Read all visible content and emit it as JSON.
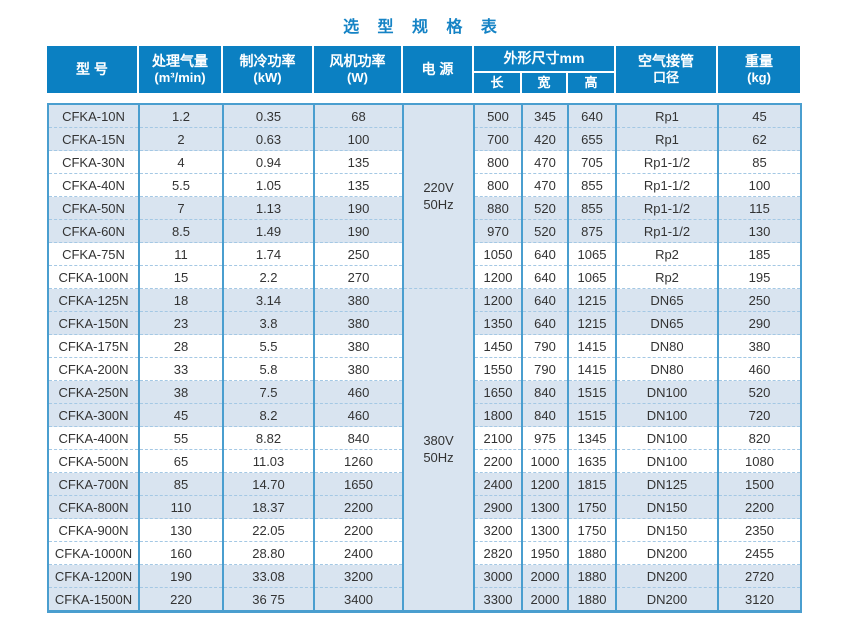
{
  "title": "选 型 规 格 表",
  "colors": {
    "header_bg": "#0b80c2",
    "title_text": "#1583c5",
    "stripe_bg": "#d9e4f0",
    "grid_border": "#4a9ecf",
    "dashed_divider": "#a4c8e4",
    "body_text": "#333333",
    "header_text": "#ffffff"
  },
  "table": {
    "headers": {
      "model": "型 号",
      "airflow_line1": "处理气量",
      "airflow_line2": "(m³/min)",
      "cooling_line1": "制冷功率",
      "cooling_line2": "(kW)",
      "fan_line1": "风机功率",
      "fan_line2": "(W)",
      "power": "电 源",
      "dimensions": "外形尺寸mm",
      "length": "长",
      "width": "宽",
      "height": "高",
      "pipe_line1": "空气接管",
      "pipe_line2": "口径",
      "weight_line1": "重量",
      "weight_line2": "(kg)"
    },
    "power_groups": [
      {
        "line1": "220V",
        "line2": "50Hz",
        "span": 8
      },
      {
        "line1": "380V",
        "line2": "50Hz",
        "span": 14
      }
    ],
    "rows": [
      [
        "CFKA-10N",
        "1.2",
        "0.35",
        "68",
        "500",
        "345",
        "640",
        "Rp1",
        "45"
      ],
      [
        "CFKA-15N",
        "2",
        "0.63",
        "100",
        "700",
        "420",
        "655",
        "Rp1",
        "62"
      ],
      [
        "CFKA-30N",
        "4",
        "0.94",
        "135",
        "800",
        "470",
        "705",
        "Rp1-1/2",
        "85"
      ],
      [
        "CFKA-40N",
        "5.5",
        "1.05",
        "135",
        "800",
        "470",
        "855",
        "Rp1-1/2",
        "100"
      ],
      [
        "CFKA-50N",
        "7",
        "1.13",
        "190",
        "880",
        "520",
        "855",
        "Rp1-1/2",
        "115"
      ],
      [
        "CFKA-60N",
        "8.5",
        "1.49",
        "190",
        "970",
        "520",
        "875",
        "Rp1-1/2",
        "130"
      ],
      [
        "CFKA-75N",
        "11",
        "1.74",
        "250",
        "1050",
        "640",
        "1065",
        "Rp2",
        "185"
      ],
      [
        "CFKA-100N",
        "15",
        "2.2",
        "270",
        "1200",
        "640",
        "1065",
        "Rp2",
        "195"
      ],
      [
        "CFKA-125N",
        "18",
        "3.14",
        "380",
        "1200",
        "640",
        "1215",
        "DN65",
        "250"
      ],
      [
        "CFKA-150N",
        "23",
        "3.8",
        "380",
        "1350",
        "640",
        "1215",
        "DN65",
        "290"
      ],
      [
        "CFKA-175N",
        "28",
        "5.5",
        "380",
        "1450",
        "790",
        "1415",
        "DN80",
        "380"
      ],
      [
        "CFKA-200N",
        "33",
        "5.8",
        "380",
        "1550",
        "790",
        "1415",
        "DN80",
        "460"
      ],
      [
        "CFKA-250N",
        "38",
        "7.5",
        "460",
        "1650",
        "840",
        "1515",
        "DN100",
        "520"
      ],
      [
        "CFKA-300N",
        "45",
        "8.2",
        "460",
        "1800",
        "840",
        "1515",
        "DN100",
        "720"
      ],
      [
        "CFKA-400N",
        "55",
        "8.82",
        "840",
        "2100",
        "975",
        "1345",
        "DN100",
        "820"
      ],
      [
        "CFKA-500N",
        "65",
        "11.03",
        "1260",
        "2200",
        "1000",
        "1635",
        "DN100",
        "1080"
      ],
      [
        "CFKA-700N",
        "85",
        "14.70",
        "1650",
        "2400",
        "1200",
        "1815",
        "DN125",
        "1500"
      ],
      [
        "CFKA-800N",
        "110",
        "18.37",
        "2200",
        "2900",
        "1300",
        "1750",
        "DN150",
        "2200"
      ],
      [
        "CFKA-900N",
        "130",
        "22.05",
        "2200",
        "3200",
        "1300",
        "1750",
        "DN150",
        "2350"
      ],
      [
        "CFKA-1000N",
        "160",
        "28.80",
        "2400",
        "2820",
        "1950",
        "1880",
        "DN200",
        "2455"
      ],
      [
        "CFKA-1200N",
        "190",
        "33.08",
        "3200",
        "3000",
        "2000",
        "1880",
        "DN200",
        "2720"
      ],
      [
        "CFKA-1500N",
        "220",
        "36 75",
        "3400",
        "3300",
        "2000",
        "1880",
        "DN200",
        "3120"
      ]
    ]
  }
}
